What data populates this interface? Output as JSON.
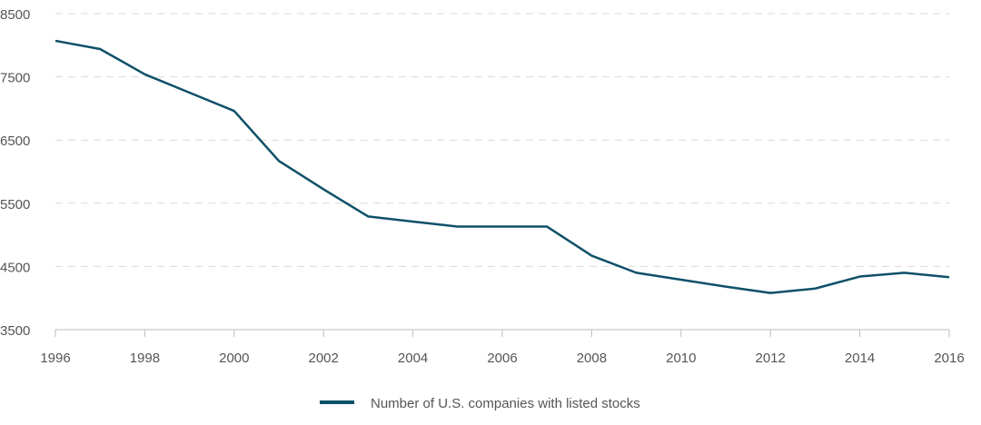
{
  "chart_data": {
    "type": "line",
    "title": "",
    "xlabel": "",
    "ylabel": "",
    "x": [
      1996,
      1997,
      1998,
      1999,
      2000,
      2001,
      2002,
      2003,
      2004,
      2005,
      2006,
      2007,
      2008,
      2009,
      2010,
      2011,
      2012,
      2013,
      2014,
      2015,
      2016
    ],
    "series": [
      {
        "name": "Number of U.S. companies with listed stocks",
        "color": "#0e5068",
        "values": [
          8070,
          7940,
          7540,
          7250,
          6960,
          6170,
          5720,
          5290,
          5210,
          5130,
          5130,
          5130,
          4670,
          4400,
          4290,
          4180,
          4080,
          4150,
          4340,
          4400,
          4330
        ]
      }
    ],
    "xlim": [
      1996,
      2016
    ],
    "ylim": [
      3500,
      8500
    ],
    "x_ticks": [
      "1996",
      "1998",
      "2000",
      "2002",
      "2004",
      "2006",
      "2008",
      "2010",
      "2012",
      "2014",
      "2016"
    ],
    "y_ticks": [
      "3500",
      "4500",
      "5500",
      "6500",
      "7500",
      "8500"
    ],
    "grid": "horizontal dashed",
    "legend_position": "bottom-center"
  }
}
